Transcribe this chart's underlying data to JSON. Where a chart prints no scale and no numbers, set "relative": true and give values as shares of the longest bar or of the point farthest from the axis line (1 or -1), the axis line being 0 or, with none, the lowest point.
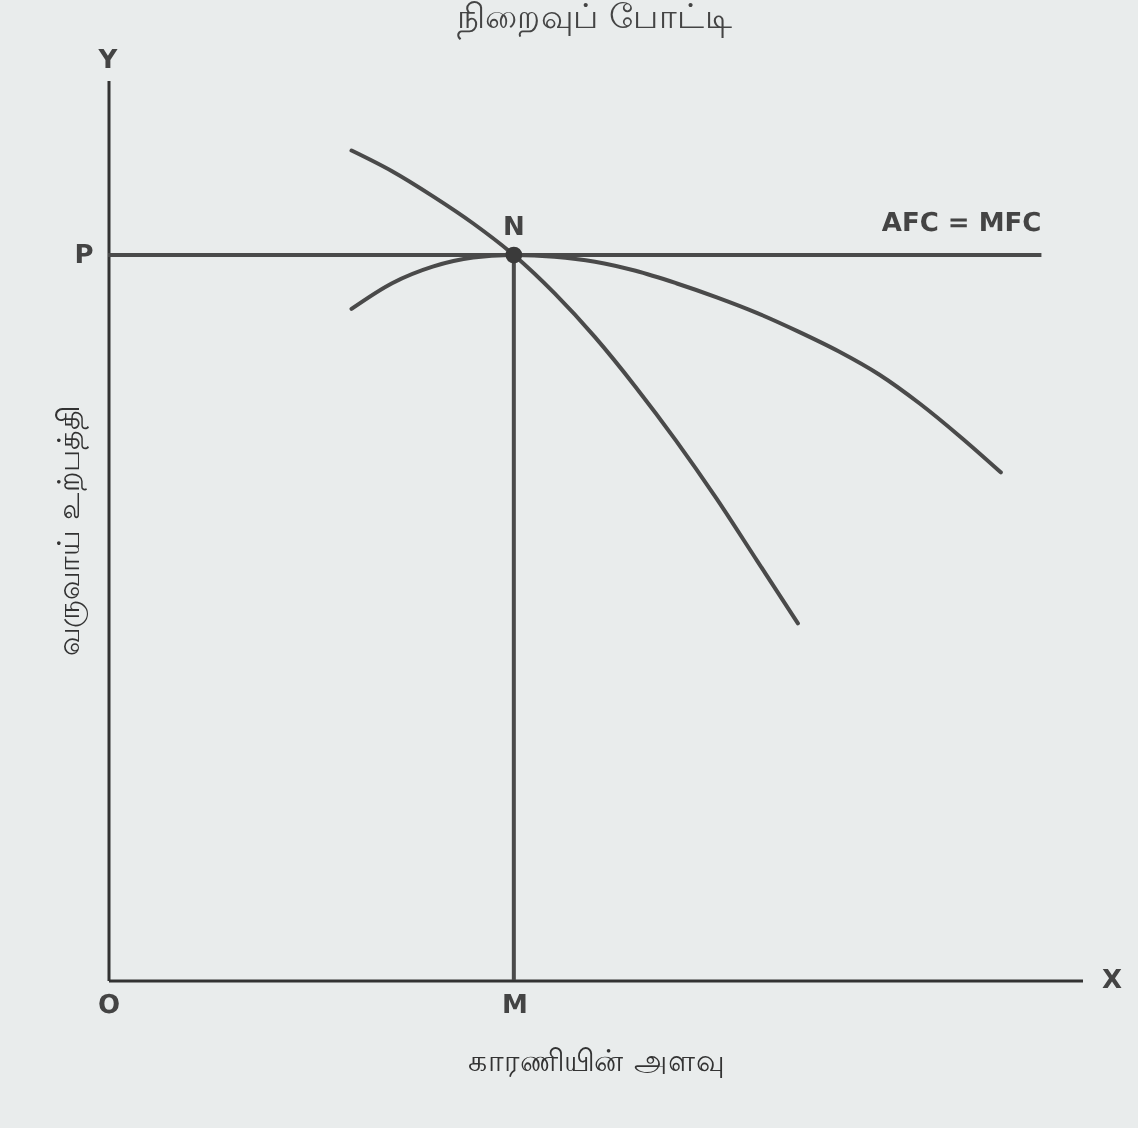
{
  "chart_data": {
    "type": "line",
    "relative": true,
    "title": "நிறைவுப் போட்டி",
    "xlabel": "காரணியின் அளவு",
    "ylabel": "வருவாய் உற்பத்தி",
    "categories": [
      "O",
      null,
      null,
      null,
      null,
      null,
      null,
      null,
      null,
      null,
      "M",
      null,
      null,
      null,
      null,
      null,
      null,
      null,
      null,
      null,
      null,
      null,
      null,
      null,
      null
    ],
    "tick_labels": "x",
    "grid": false,
    "line_style": "solid",
    "series": [
      {
        "color": "#4a4a4a",
        "values": [
          null,
          null,
          null,
          null,
          null,
          null,
          1.0,
          0.975,
          0.945,
          0.912,
          0.874,
          0.828,
          0.775,
          0.715,
          0.65,
          0.58,
          0.505,
          0.43,
          null,
          null,
          null,
          null,
          null,
          null,
          null
        ]
      },
      {
        "color": "#4a4a4a",
        "values": [
          null,
          null,
          null,
          null,
          null,
          null,
          0.809,
          0.84,
          0.86,
          0.871,
          0.874,
          0.872,
          0.866,
          0.855,
          0.84,
          0.823,
          0.804,
          0.782,
          0.758,
          0.73,
          0.695,
          0.655,
          0.612,
          null,
          null
        ]
      },
      {
        "type": "scatter",
        "color": "#3a3a3a",
        "values": [
          null,
          null,
          null,
          null,
          null,
          null,
          null,
          null,
          null,
          null,
          0.874,
          null,
          null,
          null,
          null,
          null,
          null,
          null,
          null,
          null,
          null,
          null,
          null,
          null,
          null
        ]
      }
    ],
    "ref_lines": [
      {
        "axis": "y",
        "value": 0.874,
        "label": "P",
        "color": "#4a4a4a"
      },
      {
        "axis": "x",
        "value": "M",
        "color": "#4a4a4a"
      }
    ],
    "annotations": [
      {
        "text": "N",
        "x": "M",
        "y": 0.874
      },
      {
        "text": "AFC = MFC",
        "y": 0.874
      },
      "X",
      "Y"
    ]
  }
}
